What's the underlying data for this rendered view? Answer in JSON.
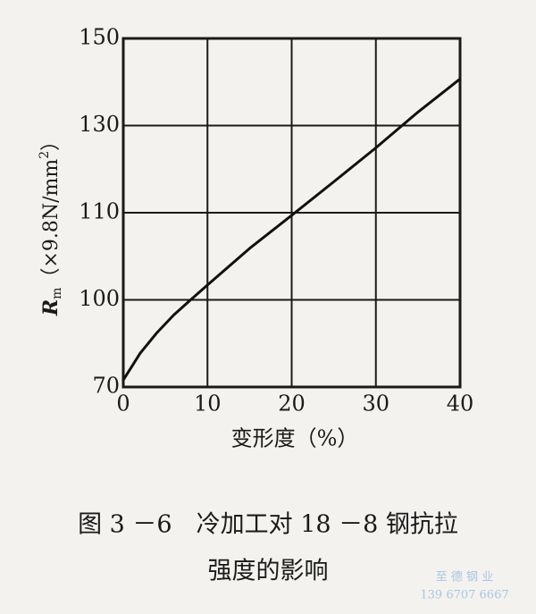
{
  "chart_data": {
    "type": "line",
    "x_label": "变形度（%）",
    "y_label_main": "R",
    "y_label_sub": "m",
    "y_label_unit": "（×9.8N/mm",
    "y_label_sup": "2",
    "y_label_close": "）",
    "caption_lines": [
      "图 3 －6　冷加工对 18 －8 钢抗拉",
      "强度的影响"
    ],
    "watermark_lines": [
      "至 德 钢 业",
      "139 6707 6667"
    ],
    "x": [
      0,
      2,
      4,
      6,
      8,
      10,
      15,
      20,
      25,
      30,
      35,
      40
    ],
    "values": [
      72.4,
      81.6,
      88.7,
      94.8,
      100,
      101.7,
      105.9,
      109.7,
      117.1,
      124.9,
      133.1,
      140.7
    ],
    "color": "#111111",
    "xlim": [
      0,
      40
    ],
    "xticks": [
      0,
      10,
      20,
      30,
      40
    ],
    "ylim": [
      70,
      150
    ],
    "yticks": [
      70,
      100,
      110,
      130,
      150
    ],
    "grid": true
  }
}
